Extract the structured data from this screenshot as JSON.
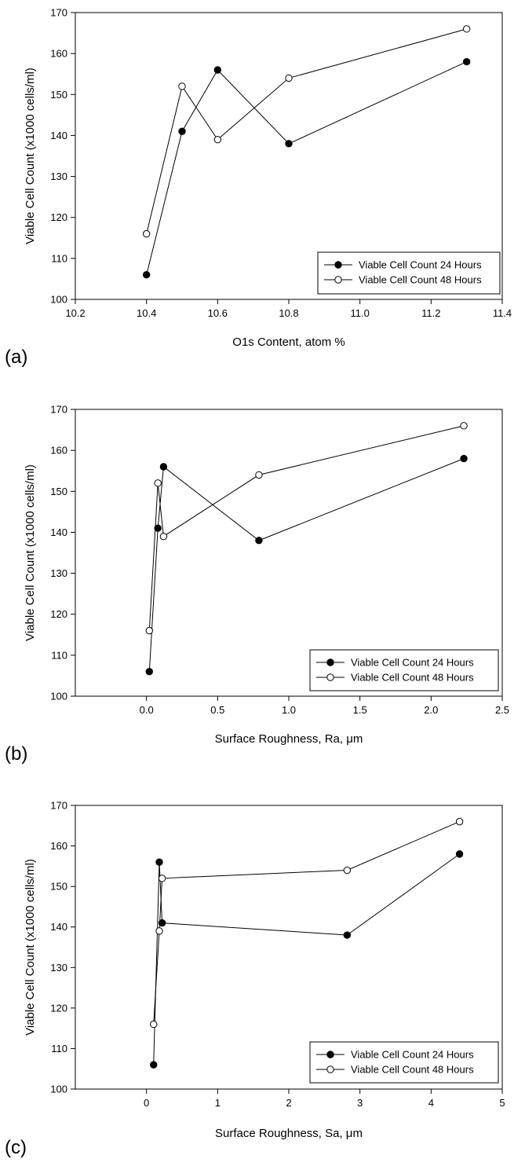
{
  "chart_data": [
    {
      "type": "line",
      "panel_label": "(a)",
      "xlabel": "O1s Content, atom %",
      "ylabel": "Viable Cell Count (x1000 cells/ml)",
      "xlim": [
        10.2,
        11.4
      ],
      "ylim": [
        100,
        170
      ],
      "xticks": [
        "10.2",
        "10.4",
        "10.6",
        "10.8",
        "11.0",
        "11.2",
        "11.4"
      ],
      "yticks": [
        "100",
        "110",
        "120",
        "130",
        "140",
        "150",
        "160",
        "170"
      ],
      "legend": "bottom-right",
      "grid": false,
      "series": [
        {
          "name": "Viable Cell Count 24 Hours",
          "marker": "filled-circle",
          "x": [
            10.4,
            10.5,
            10.6,
            10.8,
            11.3
          ],
          "y": [
            106,
            141,
            156,
            138,
            158
          ]
        },
        {
          "name": "Viable Cell Count 48 Hours",
          "marker": "open-circle",
          "x": [
            10.4,
            10.5,
            10.6,
            10.8,
            11.3
          ],
          "y": [
            116,
            152,
            139,
            154,
            166
          ]
        }
      ]
    },
    {
      "type": "line",
      "panel_label": "(b)",
      "xlabel": "Surface Roughness, Ra, μm",
      "ylabel": "Viable Cell Count (x1000 cells/ml)",
      "xlim": [
        -0.5,
        2.5
      ],
      "ylim": [
        100,
        170
      ],
      "xticks": [
        "0.0",
        "0.5",
        "1.0",
        "1.5",
        "2.0",
        "2.5"
      ],
      "yticks": [
        "100",
        "110",
        "120",
        "130",
        "140",
        "150",
        "160",
        "170"
      ],
      "legend": "bottom-right",
      "grid": false,
      "series": [
        {
          "name": "Viable Cell Count 24 Hours",
          "marker": "filled-circle",
          "x": [
            0.02,
            0.08,
            0.12,
            0.79,
            2.23
          ],
          "y": [
            106,
            141,
            156,
            138,
            158
          ]
        },
        {
          "name": "Viable Cell Count 48 Hours",
          "marker": "open-circle",
          "x": [
            0.02,
            0.08,
            0.12,
            0.79,
            2.23
          ],
          "y": [
            116,
            152,
            139,
            154,
            166
          ]
        }
      ]
    },
    {
      "type": "line",
      "panel_label": "(c)",
      "xlabel": "Surface Roughness, Sa, μm",
      "ylabel": "Viable Cell Count (x1000 cells/ml)",
      "xlim": [
        -1,
        5
      ],
      "ylim": [
        100,
        170
      ],
      "xticks": [
        "0",
        "1",
        "2",
        "3",
        "4",
        "5"
      ],
      "yticks": [
        "100",
        "110",
        "120",
        "130",
        "140",
        "150",
        "160",
        "170"
      ],
      "legend": "bottom-right",
      "grid": false,
      "series": [
        {
          "name": "Viable Cell Count 24 Hours",
          "marker": "filled-circle",
          "x": [
            0.1,
            0.18,
            0.22,
            2.82,
            4.4
          ],
          "y": [
            106,
            156,
            141,
            138,
            158
          ]
        },
        {
          "name": "Viable Cell Count 48 Hours",
          "marker": "open-circle",
          "x": [
            0.1,
            0.18,
            0.22,
            2.82,
            4.4
          ],
          "y": [
            116,
            139,
            152,
            154,
            166
          ]
        }
      ]
    }
  ]
}
